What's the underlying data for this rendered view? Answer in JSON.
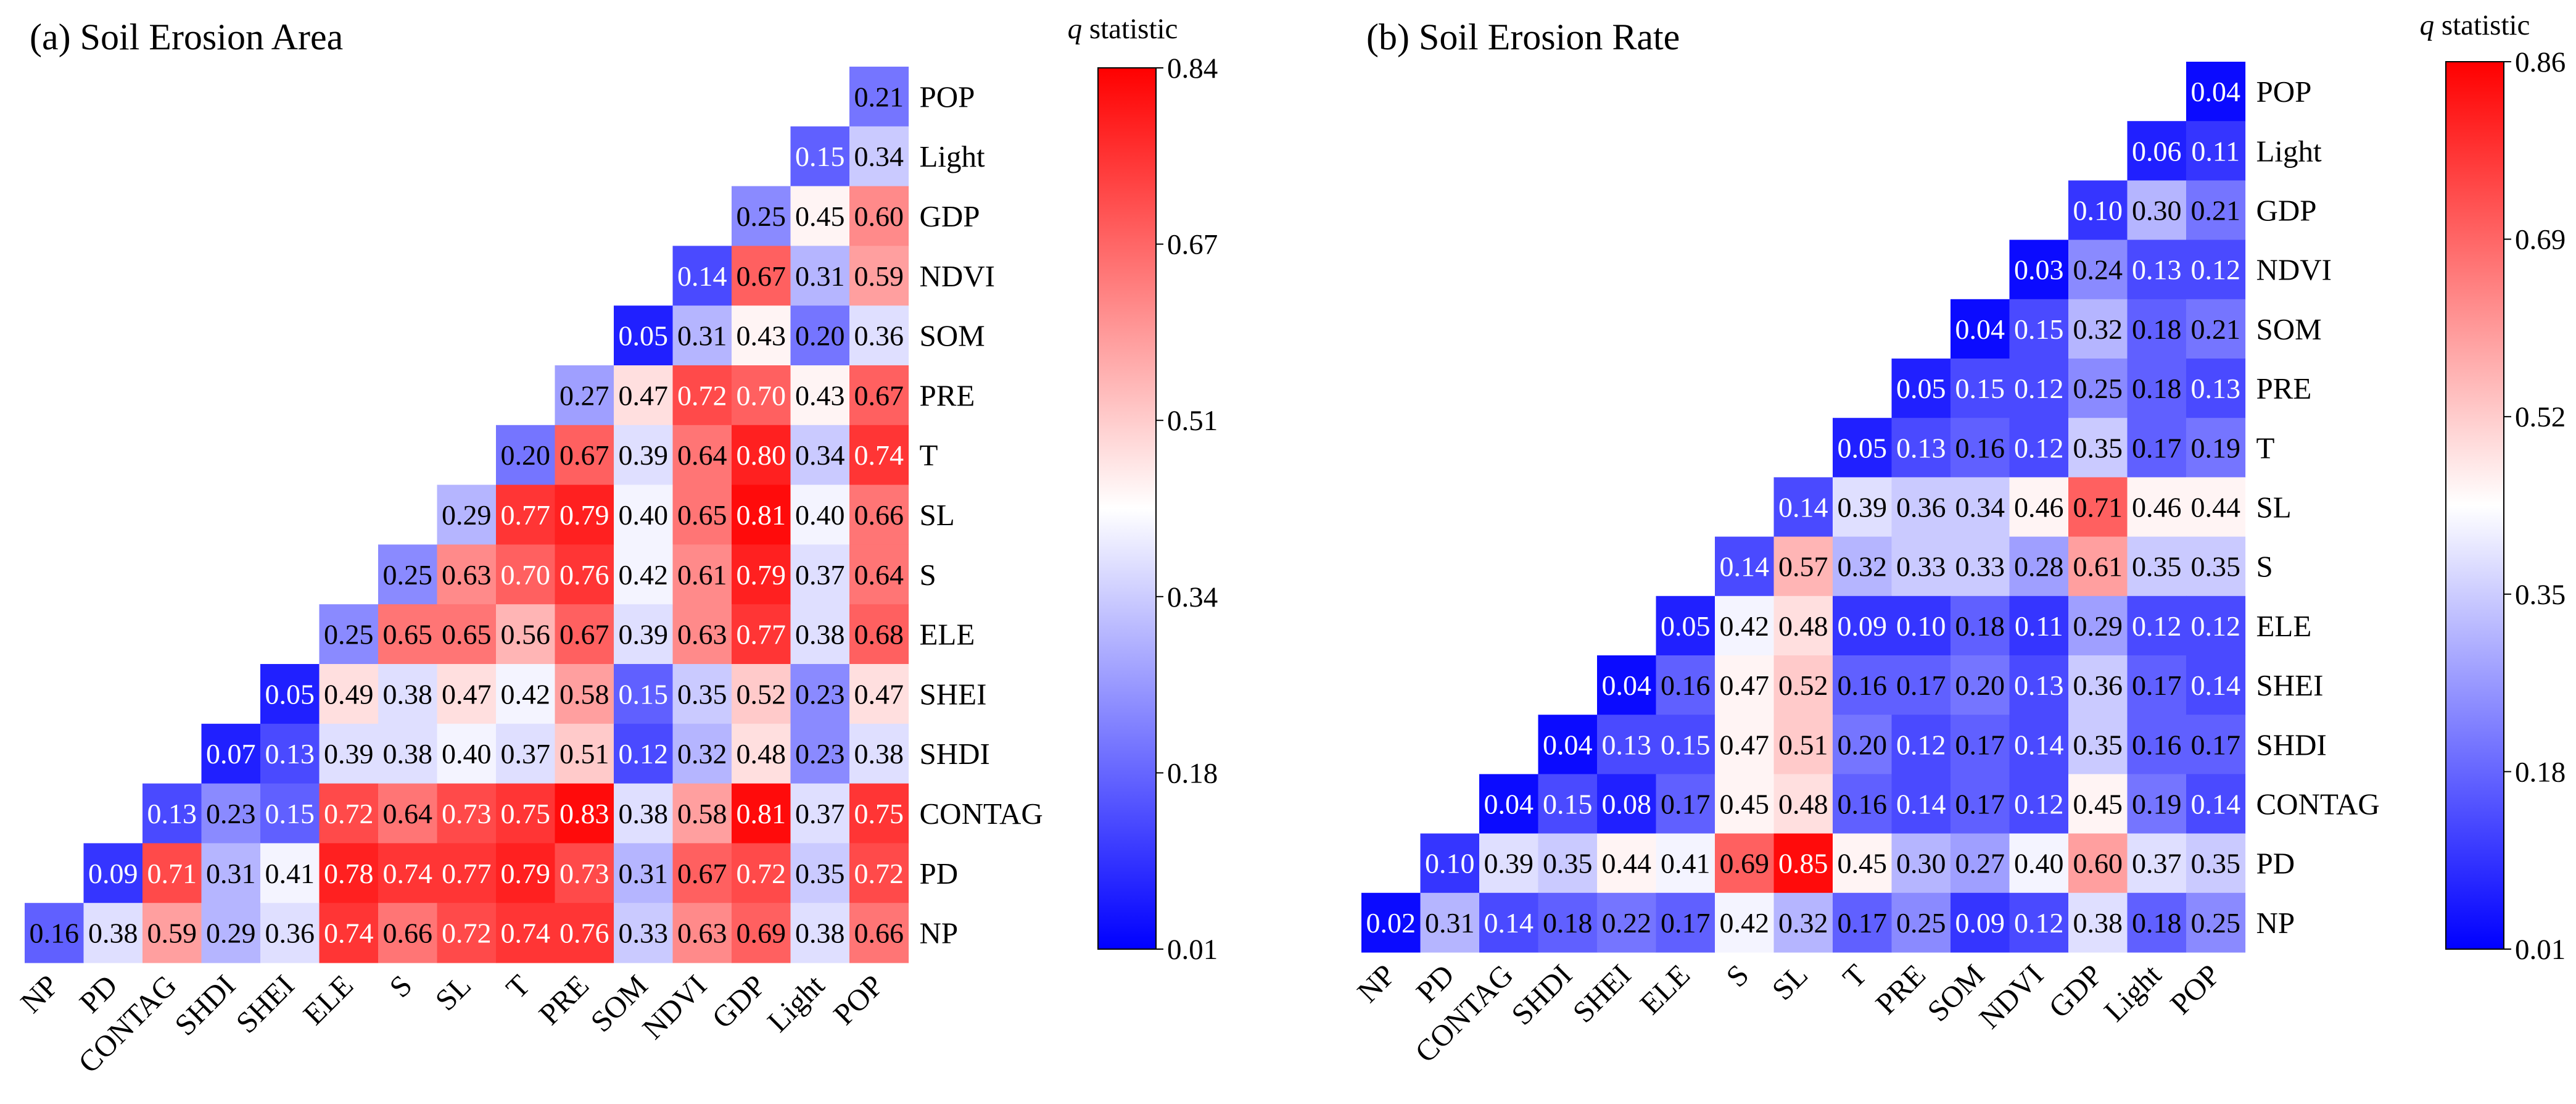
{
  "chart_data": [
    {
      "type": "heatmap",
      "title": "(a) Soil Erosion Area",
      "colorbar": {
        "title_symbol": "q",
        "title_rest": " statistic",
        "ticks": [
          "0.84",
          "0.67",
          "0.51",
          "0.34",
          "0.18",
          "0.01"
        ],
        "min": 0.01,
        "max": 0.84
      },
      "x_labels": [
        "NP",
        "PD",
        "CONTAG",
        "SHDI",
        "SHEI",
        "ELE",
        "S",
        "SL",
        "T",
        "PRE",
        "SOM",
        "NDVI",
        "GDP",
        "Light",
        "POP"
      ],
      "y_labels": [
        "POP",
        "Light",
        "GDP",
        "NDVI",
        "SOM",
        "PRE",
        "T",
        "SL",
        "S",
        "ELE",
        "SHEI",
        "SHDI",
        "CONTAG",
        "PD",
        "NP"
      ],
      "rows": [
        [
          "0.21"
        ],
        [
          "0.15",
          "0.34"
        ],
        [
          "0.25",
          "0.45",
          "0.60"
        ],
        [
          "0.14",
          "0.67",
          "0.31",
          "0.59"
        ],
        [
          "0.05",
          "0.31",
          "0.43",
          "0.20",
          "0.36"
        ],
        [
          "0.27",
          "0.47",
          "0.72",
          "0.70",
          "0.43",
          "0.67"
        ],
        [
          "0.20",
          "0.67",
          "0.39",
          "0.64",
          "0.80",
          "0.34",
          "0.74"
        ],
        [
          "0.29",
          "0.77",
          "0.79",
          "0.40",
          "0.65",
          "0.81",
          "0.40",
          "0.66"
        ],
        [
          "0.25",
          "0.63",
          "0.70",
          "0.76",
          "0.42",
          "0.61",
          "0.79",
          "0.37",
          "0.64"
        ],
        [
          "0.25",
          "0.65",
          "0.65",
          "0.56",
          "0.67",
          "0.39",
          "0.63",
          "0.77",
          "0.38",
          "0.68"
        ],
        [
          "0.05",
          "0.49",
          "0.38",
          "0.47",
          "0.42",
          "0.58",
          "0.15",
          "0.35",
          "0.52",
          "0.23",
          "0.47"
        ],
        [
          "0.07",
          "0.13",
          "0.39",
          "0.38",
          "0.40",
          "0.37",
          "0.51",
          "0.12",
          "0.32",
          "0.48",
          "0.23",
          "0.38"
        ],
        [
          "0.13",
          "0.23",
          "0.15",
          "0.72",
          "0.64",
          "0.73",
          "0.75",
          "0.83",
          "0.38",
          "0.58",
          "0.81",
          "0.37",
          "0.75"
        ],
        [
          "0.09",
          "0.71",
          "0.31",
          "0.41",
          "0.78",
          "0.74",
          "0.77",
          "0.79",
          "0.73",
          "0.31",
          "0.67",
          "0.72",
          "0.35",
          "0.72"
        ],
        [
          "0.16",
          "0.38",
          "0.59",
          "0.29",
          "0.36",
          "0.74",
          "0.66",
          "0.72",
          "0.74",
          "0.76",
          "0.33",
          "0.63",
          "0.69",
          "0.38",
          "0.66"
        ]
      ]
    },
    {
      "type": "heatmap",
      "title": "(b) Soil Erosion Rate",
      "colorbar": {
        "title_symbol": "q",
        "title_rest": " statistic",
        "ticks": [
          "0.86",
          "0.69",
          "0.52",
          "0.35",
          "0.18",
          "0.01"
        ],
        "min": 0.01,
        "max": 0.86
      },
      "x_labels": [
        "NP",
        "PD",
        "CONTAG",
        "SHDI",
        "SHEI",
        "ELE",
        "S",
        "SL",
        "T",
        "PRE",
        "SOM",
        "NDVI",
        "GDP",
        "Light",
        "POP"
      ],
      "y_labels": [
        "POP",
        "Light",
        "GDP",
        "NDVI",
        "SOM",
        "PRE",
        "T",
        "SL",
        "S",
        "ELE",
        "SHEI",
        "SHDI",
        "CONTAG",
        "PD",
        "NP"
      ],
      "rows": [
        [
          "0.04"
        ],
        [
          "0.06",
          "0.11"
        ],
        [
          "0.10",
          "0.30",
          "0.21"
        ],
        [
          "0.03",
          "0.24",
          "0.13",
          "0.12"
        ],
        [
          "0.04",
          "0.15",
          "0.32",
          "0.18",
          "0.21"
        ],
        [
          "0.05",
          "0.15",
          "0.12",
          "0.25",
          "0.18",
          "0.13"
        ],
        [
          "0.05",
          "0.13",
          "0.16",
          "0.12",
          "0.35",
          "0.17",
          "0.19"
        ],
        [
          "0.14",
          "0.39",
          "0.36",
          "0.34",
          "0.46",
          "0.71",
          "0.46",
          "0.44"
        ],
        [
          "0.14",
          "0.57",
          "0.32",
          "0.33",
          "0.33",
          "0.28",
          "0.61",
          "0.35",
          "0.35"
        ],
        [
          "0.05",
          "0.42",
          "0.48",
          "0.09",
          "0.10",
          "0.18",
          "0.11",
          "0.29",
          "0.12",
          "0.12"
        ],
        [
          "0.04",
          "0.16",
          "0.47",
          "0.52",
          "0.16",
          "0.17",
          "0.20",
          "0.13",
          "0.36",
          "0.17",
          "0.14"
        ],
        [
          "0.04",
          "0.13",
          "0.15",
          "0.47",
          "0.51",
          "0.20",
          "0.12",
          "0.17",
          "0.14",
          "0.35",
          "0.16",
          "0.17"
        ],
        [
          "0.04",
          "0.15",
          "0.08",
          "0.17",
          "0.45",
          "0.48",
          "0.16",
          "0.14",
          "0.17",
          "0.12",
          "0.45",
          "0.19",
          "0.14"
        ],
        [
          "0.10",
          "0.39",
          "0.35",
          "0.44",
          "0.41",
          "0.69",
          "0.85",
          "0.45",
          "0.30",
          "0.27",
          "0.40",
          "0.60",
          "0.37",
          "0.35"
        ],
        [
          "0.02",
          "0.31",
          "0.14",
          "0.18",
          "0.22",
          "0.17",
          "0.42",
          "0.32",
          "0.17",
          "0.25",
          "0.09",
          "0.12",
          "0.38",
          "0.18",
          "0.25"
        ]
      ]
    }
  ]
}
